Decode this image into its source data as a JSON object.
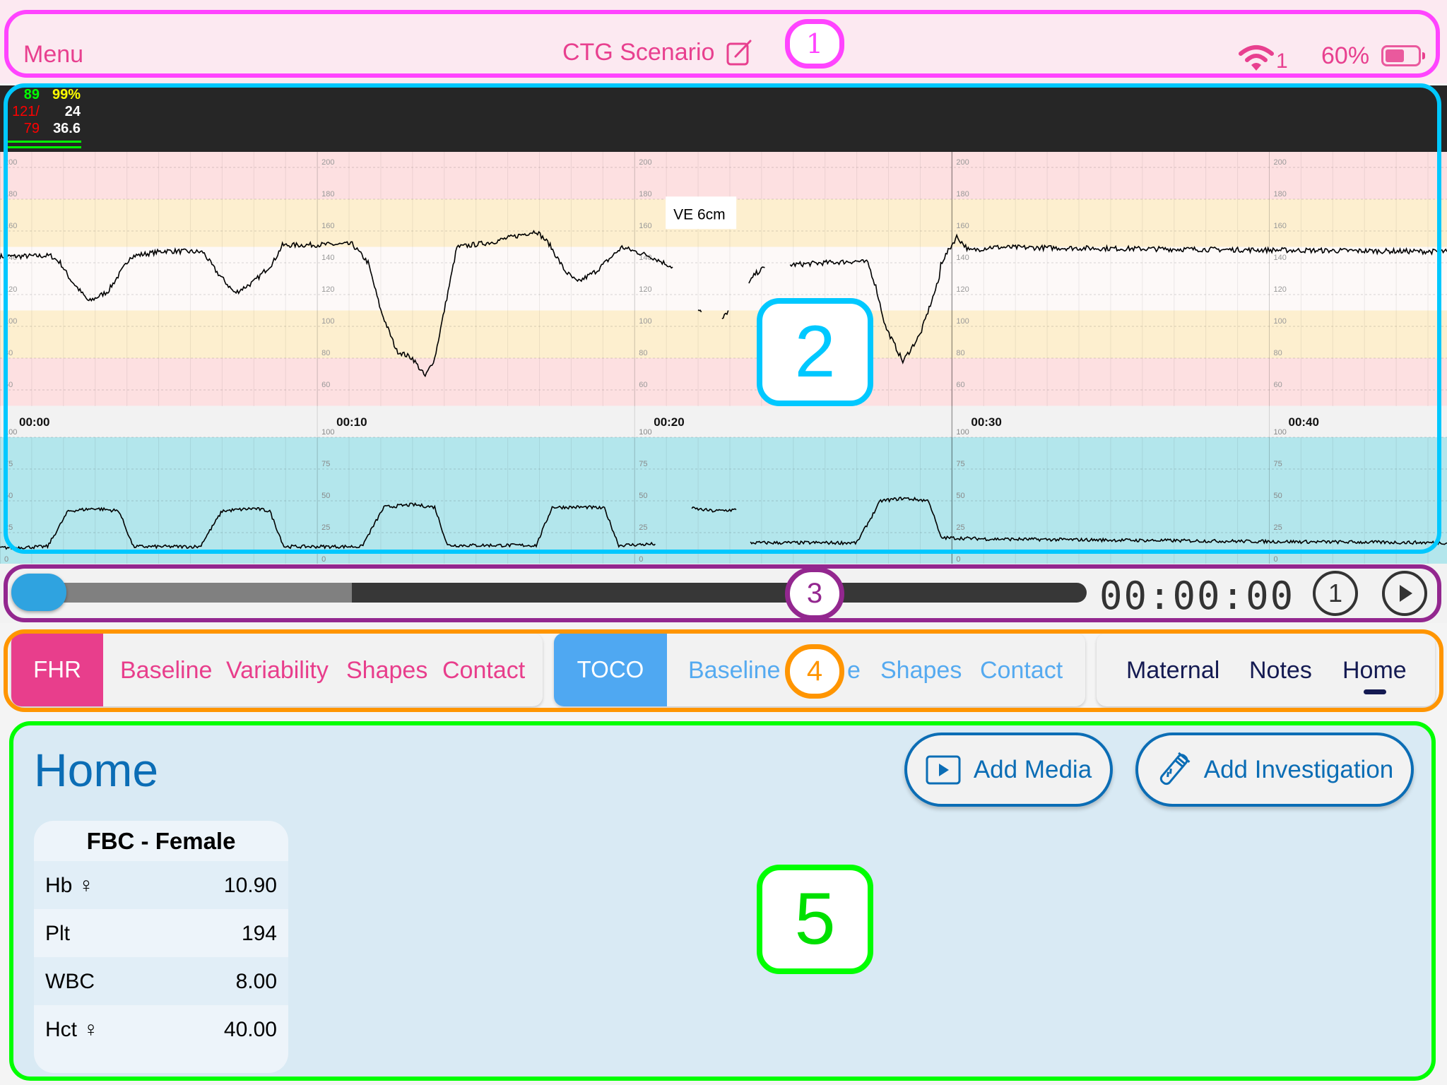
{
  "status_bar": {
    "menu": "Menu",
    "title": "CTG Scenario",
    "title_icon": "edit-icon",
    "wifi_label": "1",
    "battery": "60%",
    "battery_level": 0.6
  },
  "vitals": {
    "hr": "89",
    "spo2": "99%",
    "bp_sys": "121/",
    "bp_dia": "79",
    "rr": "24",
    "temp": "36.6",
    "colors": {
      "hr": "#00ff00",
      "spo2": "#ffff00",
      "bp": "#ff0000",
      "rr": "#ffffff",
      "temp": "#ffffff"
    }
  },
  "chart_data": [
    {
      "type": "line",
      "panel": "fhr",
      "xlim": [
        0,
        45.6
      ],
      "ylim": [
        50,
        210
      ],
      "x_tick_minutes": [
        0,
        10,
        20,
        30,
        40
      ],
      "x_tick_labels": [
        "00:00",
        "00:10",
        "00:20",
        "00:30",
        "00:40"
      ],
      "y_ticks": [
        60,
        80,
        100,
        120,
        140,
        160,
        180,
        200
      ],
      "grid": true,
      "bands": [
        {
          "from": 180,
          "to": 210,
          "color": "#fde0e1"
        },
        {
          "from": 150,
          "to": 180,
          "color": "#fdefcf"
        },
        {
          "from": 110,
          "to": 150,
          "color": "#fdf9f8"
        },
        {
          "from": 80,
          "to": 110,
          "color": "#fdefcf"
        },
        {
          "from": 50,
          "to": 80,
          "color": "#fde0e1"
        }
      ],
      "annotations": [
        {
          "text": "VE 6cm",
          "t": 21.0,
          "y": 171
        }
      ],
      "segments": [
        [
          [
            0,
            144
          ],
          [
            0.3,
            144
          ],
          [
            1.6,
            144.4
          ],
          [
            1.9,
            140
          ],
          [
            2.2,
            130
          ],
          [
            2.8,
            115.6
          ],
          [
            3.4,
            122
          ],
          [
            4.0,
            140
          ],
          [
            4.1,
            144
          ],
          [
            5.2,
            147.5
          ],
          [
            6.4,
            146.7
          ],
          [
            6.8,
            135
          ],
          [
            7.4,
            120.9
          ],
          [
            8.0,
            128
          ],
          [
            8.6,
            140
          ],
          [
            8.9,
            151
          ],
          [
            11.1,
            151.7
          ],
          [
            11.6,
            140
          ],
          [
            12.0,
            110
          ],
          [
            12.5,
            84.6
          ],
          [
            13.0,
            80
          ],
          [
            13.4,
            68.4
          ],
          [
            13.7,
            80
          ],
          [
            14.0,
            110
          ],
          [
            14.4,
            149.8
          ],
          [
            15.5,
            153
          ],
          [
            16.9,
            160
          ],
          [
            17.3,
            152
          ],
          [
            17.8,
            135
          ],
          [
            18.2,
            127.6
          ],
          [
            18.8,
            135
          ],
          [
            19.6,
            149.8
          ],
          [
            20.5,
            144
          ],
          [
            21.2,
            137.3
          ]
        ],
        [
          [
            22.0,
            110
          ],
          [
            22.1,
            109
          ]
        ],
        [
          [
            22.75,
            104
          ],
          [
            22.95,
            110
          ]
        ],
        [
          [
            23.6,
            126.7
          ],
          [
            23.8,
            133
          ],
          [
            24.1,
            137
          ]
        ],
        [
          [
            24.9,
            138.7
          ],
          [
            26.0,
            140
          ],
          [
            27.0,
            141
          ],
          [
            27.35,
            140
          ],
          [
            27.6,
            125
          ],
          [
            27.9,
            100
          ],
          [
            28.4,
            80
          ],
          [
            28.45,
            77.8
          ],
          [
            29.0,
            95
          ],
          [
            29.6,
            130
          ],
          [
            29.65,
            139.6
          ],
          [
            30.15,
            156.4
          ],
          [
            30.55,
            147.5
          ],
          [
            31.2,
            149.8
          ],
          [
            35,
            149
          ],
          [
            40,
            148
          ],
          [
            45.6,
            147
          ]
        ]
      ]
    },
    {
      "type": "line",
      "panel": "toco",
      "xlim": [
        0,
        45.6
      ],
      "ylim": [
        0,
        100
      ],
      "y_ticks": [
        0,
        25,
        50,
        75,
        100
      ],
      "grid": true,
      "background": "#b3e6ec",
      "segments": [
        [
          [
            0,
            13
          ],
          [
            1.5,
            14
          ],
          [
            2.15,
            42
          ],
          [
            3.0,
            44
          ],
          [
            3.75,
            42
          ],
          [
            4.2,
            14
          ],
          [
            6.3,
            14
          ],
          [
            7.0,
            42
          ],
          [
            8.0,
            44
          ],
          [
            8.5,
            42
          ],
          [
            8.95,
            14
          ],
          [
            11.4,
            14
          ],
          [
            12.1,
            45
          ],
          [
            13.0,
            47
          ],
          [
            13.7,
            45
          ],
          [
            14.1,
            15
          ],
          [
            16.9,
            15
          ],
          [
            17.4,
            45
          ],
          [
            18.5,
            45
          ],
          [
            19.05,
            44
          ],
          [
            19.5,
            15
          ],
          [
            20.65,
            16
          ]
        ],
        [
          [
            21.8,
            44
          ],
          [
            22.5,
            42
          ],
          [
            23.2,
            43
          ]
        ],
        [
          [
            23.65,
            17
          ],
          [
            25.0,
            17
          ],
          [
            27.0,
            17
          ],
          [
            27.75,
            50
          ],
          [
            28.5,
            52
          ],
          [
            29.27,
            50
          ],
          [
            29.65,
            21
          ],
          [
            31.2,
            20
          ],
          [
            40,
            18
          ],
          [
            45.6,
            17
          ]
        ]
      ]
    }
  ],
  "playback": {
    "position": 0.0,
    "buffered": 0.3,
    "time": "00:00:00",
    "speed": "1",
    "play_icon": "play-icon"
  },
  "tabs": {
    "fhr": {
      "label": "FHR",
      "items": [
        "Baseline",
        "Variability",
        "Shapes",
        "Contact"
      ],
      "color": "#e83e8c"
    },
    "toco": {
      "label": "TOCO",
      "items": [
        "Baseline",
        "e",
        "Shapes",
        "Contact"
      ],
      "color": "#4fa8f2"
    },
    "other": {
      "items": [
        "Maternal",
        "Notes",
        "Home"
      ],
      "active": "Home",
      "color": "#141a52"
    }
  },
  "home": {
    "title": "Home",
    "add_media": "Add Media",
    "add_investigation": "Add Investigation",
    "card": {
      "title": "FBC - Female",
      "rows": [
        {
          "label": "Hb",
          "female": "♀",
          "value": "10.90"
        },
        {
          "label": "Plt",
          "female": "",
          "value": "194"
        },
        {
          "label": "WBC",
          "female": "",
          "value": "8.00"
        },
        {
          "label": "Hct",
          "female": "♀",
          "value": "40.00"
        }
      ]
    }
  },
  "callouts": [
    "1",
    "2",
    "3",
    "4",
    "5"
  ],
  "callout_colors": [
    "#ff44ff",
    "#00c8ff",
    "#93278f",
    "#ff9500",
    "#00ff00"
  ]
}
